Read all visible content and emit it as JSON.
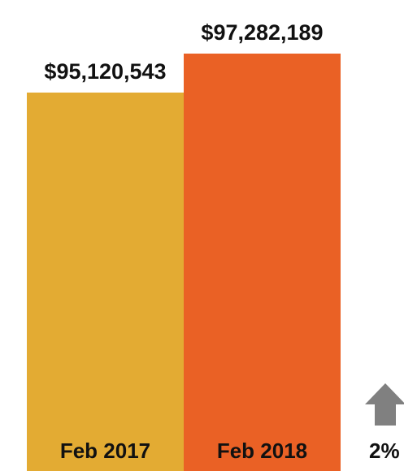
{
  "chart_data": {
    "type": "bar",
    "categories": [
      "Feb 2017",
      "Feb 2018"
    ],
    "values": [
      95120543,
      97282189
    ],
    "value_labels": [
      "$95,120,543",
      "$97,282,189"
    ],
    "colors": [
      "#E3AB33",
      "#EA6125"
    ],
    "ylim": [
      0,
      97282189
    ],
    "grid": false,
    "legend": "none"
  },
  "change_indicator": {
    "text": "2%",
    "direction": "up",
    "icon": "up-arrow-icon",
    "color": "#808080"
  }
}
